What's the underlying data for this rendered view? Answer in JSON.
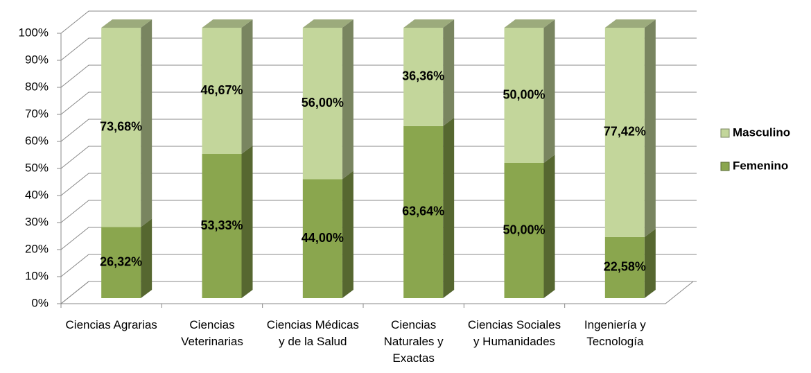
{
  "chart_data": {
    "type": "bar",
    "stacked": true,
    "categories": [
      "Ciencias Agrarias",
      "Ciencias Veterinarias",
      "Ciencias Médicas y de la Salud",
      "Ciencias Naturales y Exactas",
      "Ciencias Sociales y Humanidades",
      "Ingeniería y Tecnología"
    ],
    "series": [
      {
        "name": "Femenino",
        "color": "#8aa64e",
        "values": [
          26.32,
          53.33,
          44.0,
          63.64,
          50.0,
          22.58
        ],
        "value_labels": [
          "26,32%",
          "53,33%",
          "44,00%",
          "63,64%",
          "50,00%",
          "22,58%"
        ]
      },
      {
        "name": "Masculino",
        "color": "#c3d69b",
        "values": [
          73.68,
          46.67,
          56.0,
          36.36,
          50.0,
          77.42
        ],
        "value_labels": [
          "73,68%",
          "46,67%",
          "56,00%",
          "36,36%",
          "50,00%",
          "77,42%"
        ]
      }
    ],
    "ylim": [
      0,
      100
    ],
    "yticks": [
      {
        "value": 0,
        "label": "0%"
      },
      {
        "value": 10,
        "label": "10%"
      },
      {
        "value": 20,
        "label": "20%"
      },
      {
        "value": 30,
        "label": "30%"
      },
      {
        "value": 40,
        "label": "40%"
      },
      {
        "value": 50,
        "label": "50%"
      },
      {
        "value": 60,
        "label": "60%"
      },
      {
        "value": 70,
        "label": "70%"
      },
      {
        "value": 80,
        "label": "80%"
      },
      {
        "value": 90,
        "label": "90%"
      },
      {
        "value": 100,
        "label": "100%"
      }
    ],
    "grid": true,
    "legend": "right"
  }
}
